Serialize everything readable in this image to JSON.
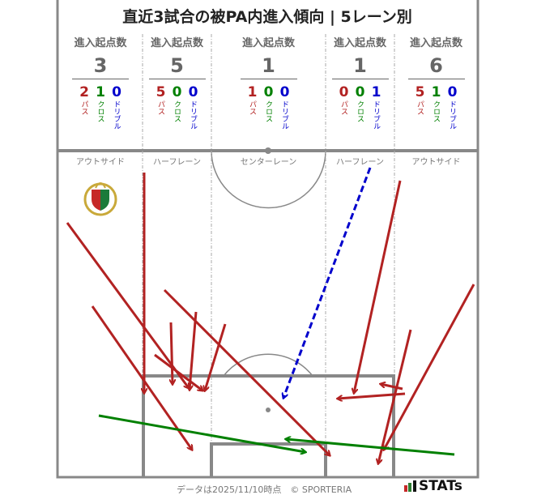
{
  "chart_data": {
    "type": "pitch-arrows",
    "title": "直近3試合の被PA内進入傾向 | 5レーン別",
    "lanes": [
      {
        "name": "アウトサイド",
        "label": "進入起点数",
        "total": 3,
        "pass": 2,
        "cross": 1,
        "dribble": 0
      },
      {
        "name": "ハーフレーン",
        "label": "進入起点数",
        "total": 5,
        "pass": 5,
        "cross": 0,
        "dribble": 0
      },
      {
        "name": "センターレーン",
        "label": "進入起点数",
        "total": 1,
        "pass": 1,
        "cross": 0,
        "dribble": 0
      },
      {
        "name": "ハーフレーン",
        "label": "進入起点数",
        "total": 1,
        "pass": 0,
        "cross": 0,
        "dribble": 1
      },
      {
        "name": "アウトサイド",
        "label": "進入起点数",
        "total": 6,
        "pass": 5,
        "cross": 1,
        "dribble": 0
      }
    ],
    "type_labels": {
      "pass": "パス",
      "cross": "クロス",
      "dribble": "ドリブル"
    },
    "colors": {
      "pass": "#b22222",
      "cross": "#008000",
      "dribble": "#0000cc"
    },
    "arrows": [
      {
        "type": "pass",
        "from": [
          178,
          213
        ],
        "to": [
          178,
          485
        ]
      },
      {
        "type": "pass",
        "from": [
          83,
          275
        ],
        "to": [
          233,
          479
        ]
      },
      {
        "type": "pass",
        "from": [
          114,
          378
        ],
        "to": [
          237,
          555
        ]
      },
      {
        "type": "pass",
        "from": [
          203,
          358
        ],
        "to": [
          407,
          562
        ]
      },
      {
        "type": "pass",
        "from": [
          211,
          398
        ],
        "to": [
          213,
          474
        ]
      },
      {
        "type": "pass",
        "from": [
          242,
          385
        ],
        "to": [
          234,
          481
        ]
      },
      {
        "type": "pass",
        "from": [
          278,
          400
        ],
        "to": [
          253,
          482
        ]
      },
      {
        "type": "pass",
        "from": [
          191,
          438
        ],
        "to": [
          250,
          482
        ]
      },
      {
        "type": "pass",
        "from": [
          494,
          223
        ],
        "to": [
          437,
          485
        ]
      },
      {
        "type": "pass",
        "from": [
          500,
          486
        ],
        "to": [
          417,
          492
        ]
      },
      {
        "type": "pass",
        "from": [
          497,
          480
        ],
        "to": [
          470,
          474
        ]
      },
      {
        "type": "pass",
        "from": [
          507,
          407
        ],
        "to": [
          467,
          572
        ]
      },
      {
        "type": "pass",
        "from": [
          585,
          351
        ],
        "to": [
          474,
          555
        ]
      },
      {
        "type": "cross",
        "from": [
          122,
          513
        ],
        "to": [
          377,
          558
        ]
      },
      {
        "type": "cross",
        "from": [
          561,
          561
        ],
        "to": [
          353,
          542
        ]
      },
      {
        "type": "dribble",
        "from": [
          457,
          207
        ],
        "to": [
          350,
          491
        ]
      }
    ]
  },
  "footer": {
    "note": "データは2025/11/10時点　© SPORTERIA",
    "brand": "STATs"
  }
}
